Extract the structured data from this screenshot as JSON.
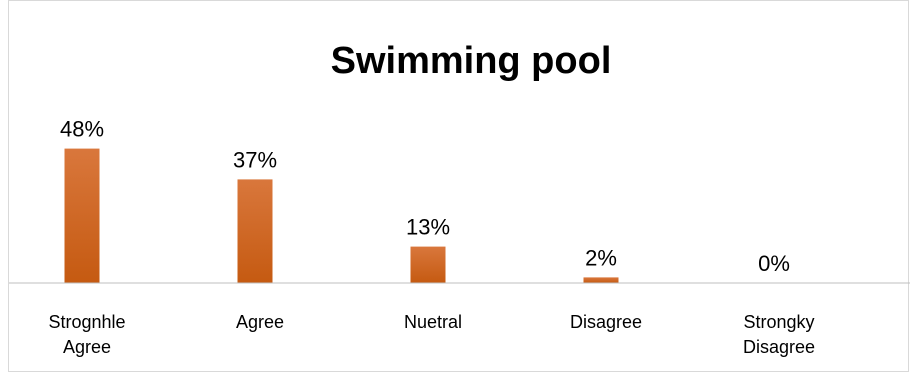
{
  "chart_data": {
    "type": "bar",
    "title": "Swimming pool",
    "categories": [
      "Strognhle Agree",
      "Agree",
      "Nuetral",
      "Disagree",
      "Strongky Disagree"
    ],
    "category_lines": [
      [
        "Strognhle",
        "Agree"
      ],
      [
        "Agree"
      ],
      [
        "Nuetral"
      ],
      [
        "Disagree"
      ],
      [
        "Strongky",
        "Disagree"
      ]
    ],
    "values": [
      48,
      37,
      13,
      2,
      0
    ],
    "data_labels": [
      "48%",
      "37%",
      "13%",
      "2%",
      "0%"
    ],
    "ylim": [
      0,
      50
    ],
    "grid": false,
    "legend": "none",
    "bar_color": "#c55a11",
    "bar_highlight": "#d9773c"
  }
}
